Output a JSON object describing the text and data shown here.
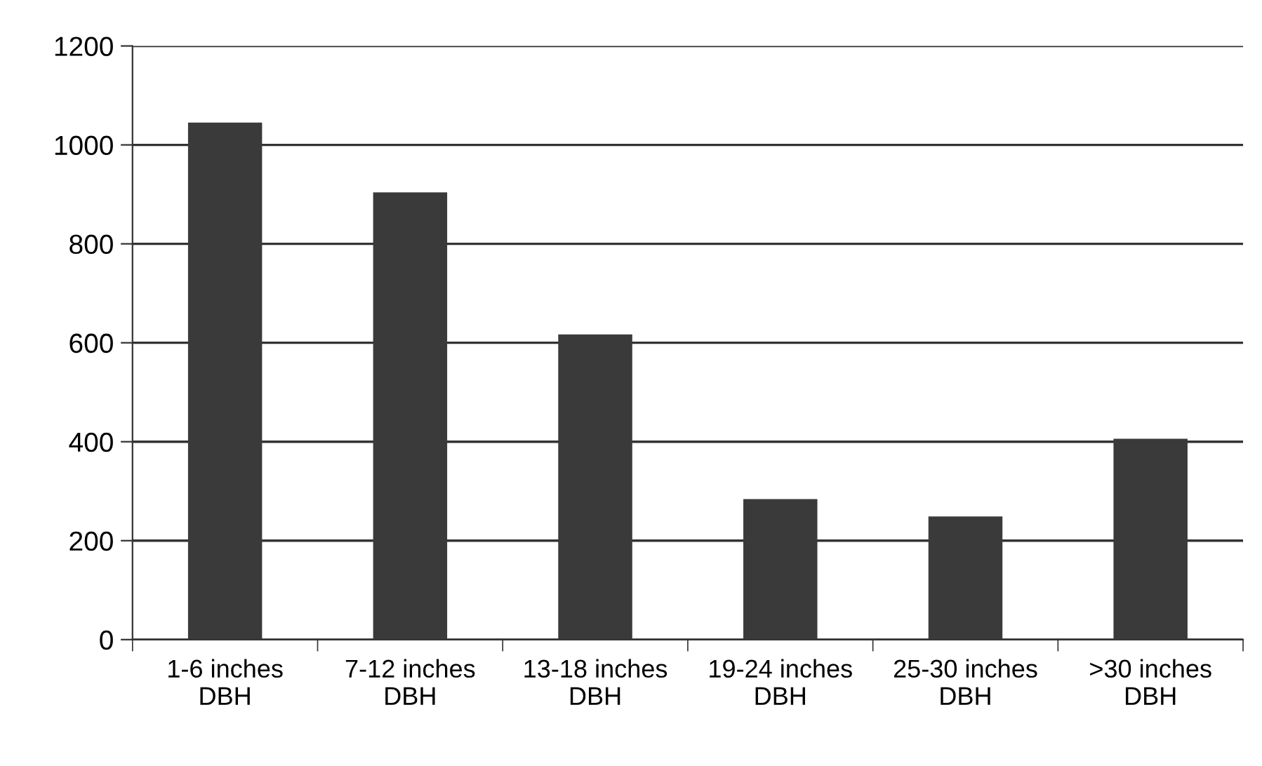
{
  "chart_data": {
    "type": "bar",
    "categories": [
      "1-6 inches\nDBH",
      "7-12 inches\nDBH",
      "13-18 inches\nDBH",
      "19-24 inches\nDBH",
      "25-30 inches\nDBH",
      ">30 inches\nDBH"
    ],
    "values": [
      1045,
      904,
      617,
      284,
      249,
      406
    ],
    "color": "#3a3a3a",
    "ylim": [
      0,
      1200
    ],
    "yticks": [
      0,
      200,
      400,
      600,
      800,
      1000,
      1200
    ],
    "grid": "y"
  }
}
